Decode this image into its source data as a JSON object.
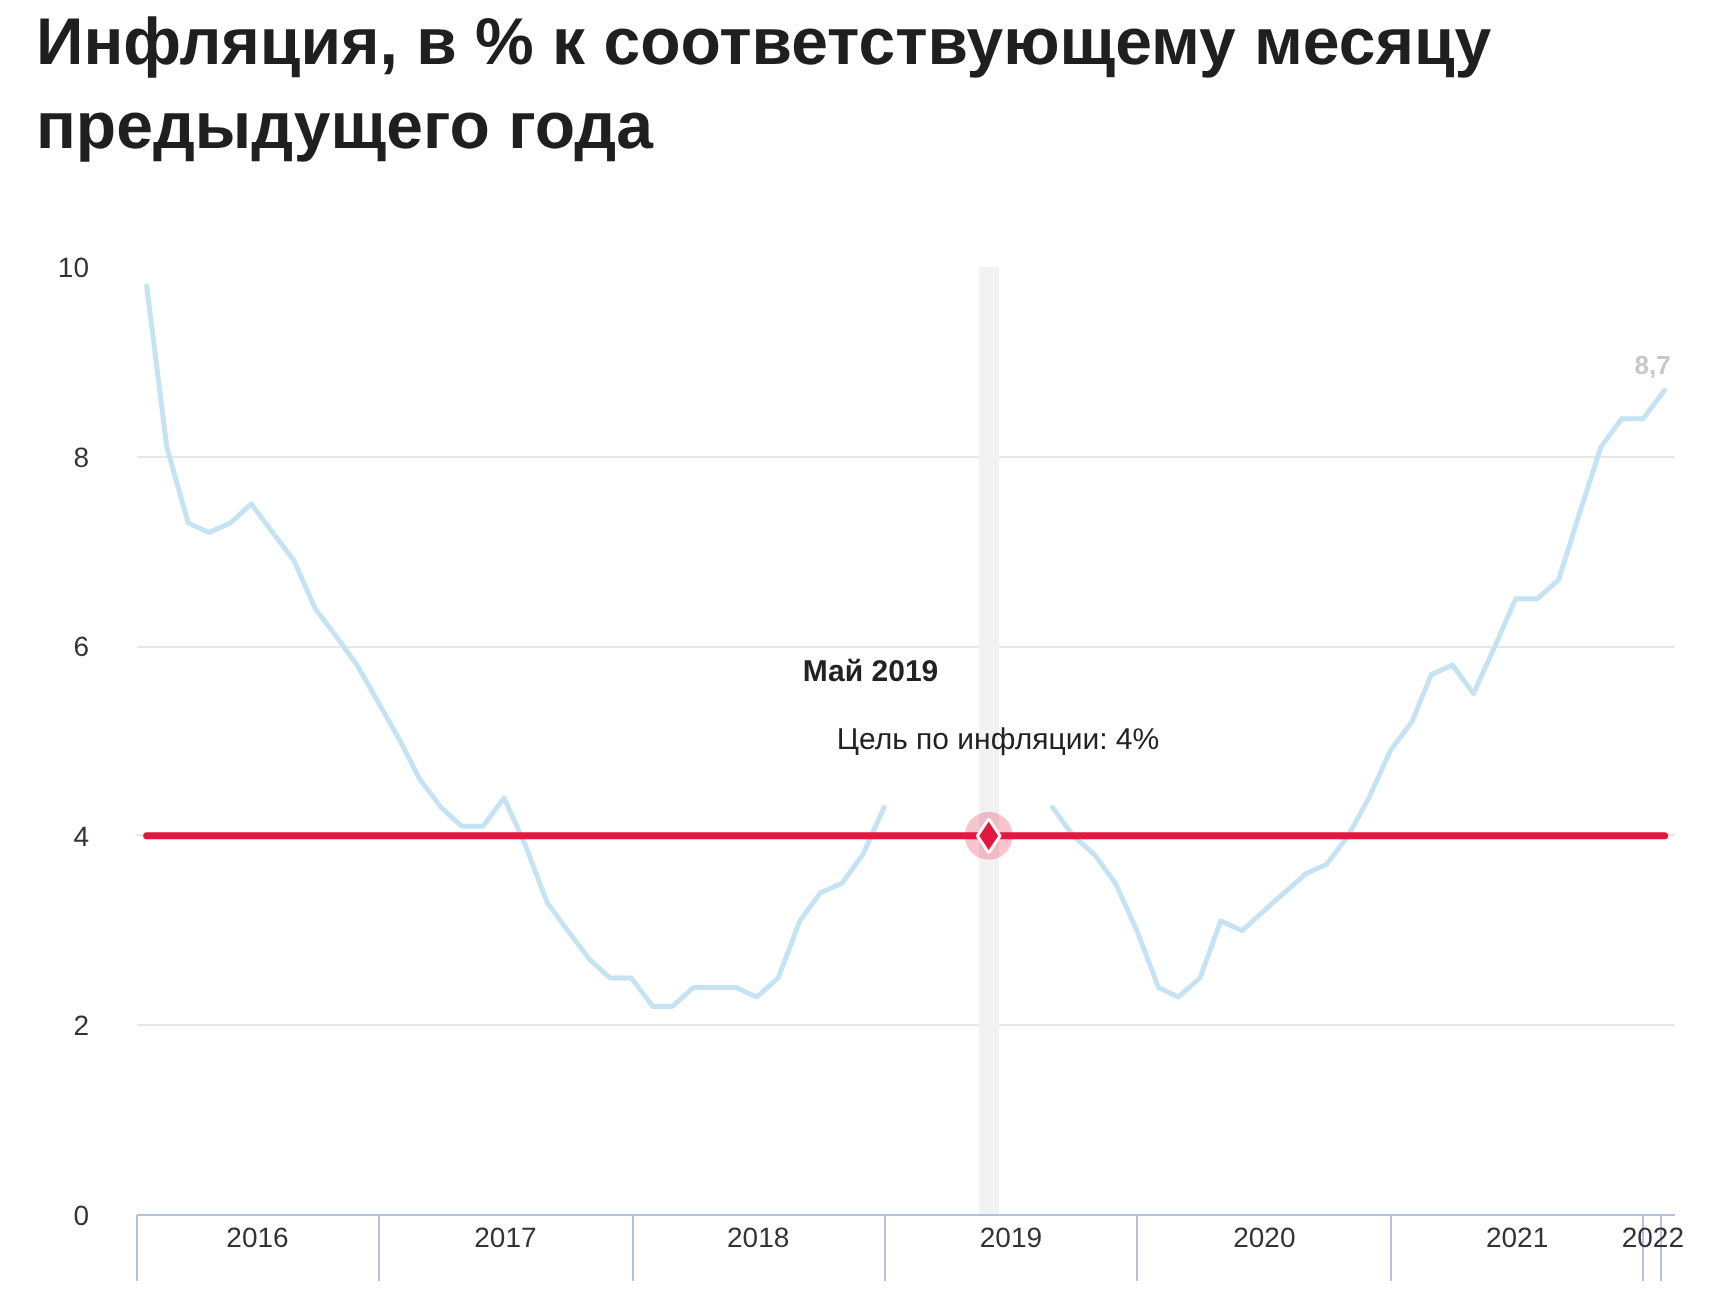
{
  "chart_data": {
    "type": "line",
    "title": "Инфляция, в % к соответствующему месяцу предыдущего года",
    "x": [
      "2016-01-31",
      "2016-02-29",
      "2016-03-31",
      "2016-04-30",
      "2016-05-31",
      "2016-06-30",
      "2016-07-31",
      "2016-08-31",
      "2016-09-30",
      "2016-10-31",
      "2016-11-30",
      "2016-12-31",
      "2017-01-31",
      "2017-02-28",
      "2017-03-31",
      "2017-04-30",
      "2017-05-31",
      "2017-06-30",
      "2017-07-31",
      "2017-08-31",
      "2017-09-30",
      "2017-10-31",
      "2017-11-30",
      "2017-12-31",
      "2018-01-31",
      "2018-02-28",
      "2018-03-31",
      "2018-04-30",
      "2018-05-31",
      "2018-06-30",
      "2018-07-31",
      "2018-08-31",
      "2018-09-30",
      "2018-10-31",
      "2018-11-30",
      "2018-12-31",
      "2019-01-31",
      "2019-02-28",
      "2019-03-31",
      "2019-04-30",
      "2019-05-31",
      "2019-06-30",
      "2019-07-31",
      "2019-08-31",
      "2019-09-30",
      "2019-10-31",
      "2019-11-30",
      "2019-12-31",
      "2020-01-31",
      "2020-02-29",
      "2020-03-31",
      "2020-04-30",
      "2020-05-31",
      "2020-06-30",
      "2020-07-31",
      "2020-08-31",
      "2020-09-30",
      "2020-10-31",
      "2020-11-30",
      "2020-12-31",
      "2021-01-31",
      "2021-02-28",
      "2021-03-31",
      "2021-04-30",
      "2021-05-31",
      "2021-06-30",
      "2021-07-31",
      "2021-08-31",
      "2021-09-30",
      "2021-10-31",
      "2021-11-30",
      "2021-12-31",
      "2022-01-31"
    ],
    "series": [
      {
        "color": "#c6e3f4",
        "values": [
          9.8,
          8.1,
          7.3,
          7.2,
          7.3,
          7.5,
          7.2,
          6.9,
          6.4,
          6.1,
          5.8,
          5.4,
          5.0,
          4.6,
          4.3,
          4.1,
          4.1,
          4.4,
          3.9,
          3.3,
          3.0,
          2.7,
          2.5,
          2.5,
          2.2,
          2.2,
          2.4,
          2.4,
          2.4,
          2.3,
          2.5,
          3.1,
          3.4,
          3.5,
          3.8,
          4.3,
          null,
          null,
          null,
          null,
          null,
          null,
          null,
          4.3,
          4.0,
          3.8,
          3.5,
          3.0,
          2.4,
          2.3,
          2.5,
          3.1,
          3.0,
          3.2,
          3.4,
          3.6,
          3.7,
          4.0,
          4.4,
          4.9,
          5.2,
          5.7,
          5.8,
          5.5,
          6.0,
          6.5,
          6.5,
          6.7,
          7.4,
          8.1,
          8.4,
          8.4,
          8.7
        ],
        "value_labels": [
          null,
          null,
          null,
          null,
          null,
          null,
          null,
          null,
          null,
          null,
          null,
          null,
          null,
          null,
          null,
          null,
          null,
          null,
          null,
          null,
          null,
          null,
          null,
          null,
          null,
          null,
          null,
          null,
          null,
          null,
          null,
          null,
          null,
          null,
          null,
          null,
          null,
          null,
          null,
          null,
          null,
          null,
          null,
          null,
          null,
          null,
          null,
          null,
          null,
          null,
          null,
          null,
          null,
          null,
          null,
          null,
          null,
          null,
          null,
          null,
          null,
          null,
          null,
          null,
          null,
          null,
          null,
          null,
          null,
          null,
          null,
          null,
          "8,7"
        ]
      },
      {
        "color": "#e5173f",
        "x": [
          "2016-01-31",
          "2022-01-31"
        ],
        "values": [
          4,
          4
        ]
      }
    ],
    "xlim": [
      "2016-01-17",
      "2022-02-15"
    ],
    "xticks": [
      {
        "value": "2016-01-17",
        "label": null
      },
      {
        "value": "2016-07-09",
        "label": "2016"
      },
      {
        "value": "2017-01-01",
        "label": null
      },
      {
        "value": "2017-07-02",
        "label": "2017"
      },
      {
        "value": "2018-01-01",
        "label": null
      },
      {
        "value": "2018-07-02",
        "label": "2018"
      },
      {
        "value": "2019-01-01",
        "label": null
      },
      {
        "value": "2019-07-02",
        "label": "2019"
      },
      {
        "value": "2020-01-01",
        "label": null
      },
      {
        "value": "2020-07-02",
        "label": "2020"
      },
      {
        "value": "2021-01-01",
        "label": null
      },
      {
        "value": "2021-07-02",
        "label": "2021"
      },
      {
        "value": "2022-01-01",
        "label": null
      },
      {
        "value": "2022-01-14",
        "label": "2022"
      },
      {
        "value": "2022-01-27",
        "label": null
      }
    ],
    "ylim": [
      0,
      10
    ],
    "yticks": [
      0,
      2,
      4,
      6,
      8,
      10
    ],
    "grid": "y",
    "bands": [
      {
        "axis": "x",
        "from": "2019-05-17",
        "to": "2019-06-15",
        "color": "#f2f2f2"
      }
    ],
    "annotations": [
      "Май 2019",
      {
        "text": "Цель по инфляции: 4%",
        "x": "2019-05-31",
        "y": 4
      }
    ]
  }
}
